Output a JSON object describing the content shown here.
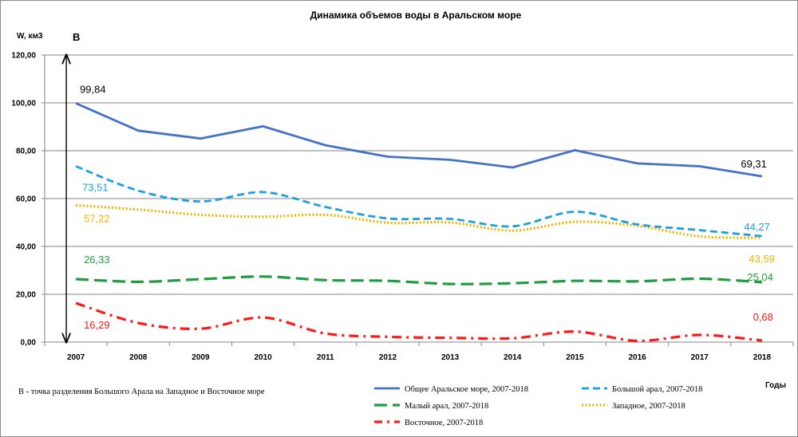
{
  "chart_data": {
    "type": "line",
    "title": "Динамика объемов воды в Аральском море",
    "ylabel": "W, км3",
    "xlabel": "Годы",
    "ylim": [
      0,
      120
    ],
    "y_ticks": [
      "0,00",
      "20,00",
      "40,00",
      "60,00",
      "80,00",
      "100,00",
      "120,00"
    ],
    "categories": [
      "2007",
      "2008",
      "2009",
      "2010",
      "2011",
      "2012",
      "2013",
      "2014",
      "2015",
      "2016",
      "2017",
      "2018"
    ],
    "grid": true,
    "marker_label": "B",
    "note": "В - точка разделения Большого Арала на Западное и Восточное море",
    "series": [
      {
        "name": "Общее Аральское море, 2007-2018",
        "color": "#4472c4",
        "dash": "solid",
        "values": [
          99.84,
          88.4,
          85.1,
          90.2,
          82.3,
          77.5,
          76.2,
          73.0,
          80.2,
          74.7,
          73.5,
          69.31
        ],
        "labels": {
          "start": "99,84",
          "end": "69,31"
        }
      },
      {
        "name": "Большой арал, 2007-2018",
        "color": "#1e9fe0",
        "dash": "dash",
        "values": [
          73.51,
          63.3,
          58.8,
          62.7,
          56.5,
          51.7,
          51.5,
          48.4,
          54.5,
          49.2,
          46.8,
          44.27
        ],
        "labels": {
          "start": "73,51",
          "end": "44,27"
        }
      },
      {
        "name": "Малый арал, 2007-2018",
        "color": "#1f9e3e",
        "dash": "longdash",
        "values": [
          26.33,
          25.2,
          26.3,
          27.4,
          25.9,
          25.6,
          24.3,
          24.6,
          25.6,
          25.4,
          26.5,
          25.04
        ],
        "labels": {
          "start": "26,33",
          "end": "25,04"
        }
      },
      {
        "name": "Западное, 2007-2018",
        "color": "#f0b400",
        "dash": "dot",
        "values": [
          57.22,
          55.4,
          53.2,
          52.4,
          53.2,
          49.9,
          50.0,
          46.6,
          50.3,
          48.6,
          44.2,
          43.59
        ],
        "labels": {
          "start": "57,22",
          "end": "43,59"
        }
      },
      {
        "name": "Восточное, 2007-2018",
        "color": "#ff1a1a",
        "dash": "dashdot",
        "values": [
          16.29,
          8.0,
          5.6,
          10.3,
          3.6,
          2.2,
          1.8,
          1.6,
          4.4,
          0.5,
          3.0,
          0.68
        ],
        "labels": {
          "start": "16,29",
          "end": "0,68"
        }
      }
    ]
  }
}
